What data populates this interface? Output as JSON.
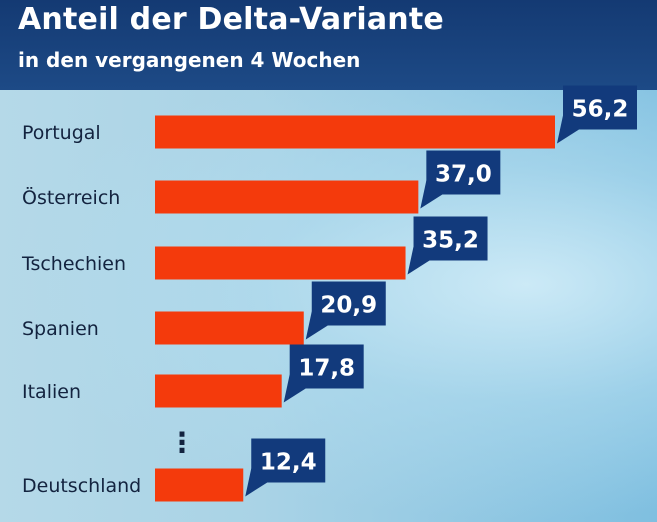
{
  "header": {
    "title": "Anteil der Delta-Variante",
    "subtitle": "in den vergangenen 4 Wochen"
  },
  "colors": {
    "bar": "#f43a0c",
    "value_box": "#123a7c",
    "header_bg": "#143a73"
  },
  "chart_data": {
    "type": "bar",
    "orientation": "horizontal",
    "title": "Anteil der Delta-Variante",
    "subtitle": "in den vergangenen 4 Wochen",
    "categories": [
      "Portugal",
      "Österreich",
      "Tschechien",
      "Spanien",
      "Italien",
      "Deutschland"
    ],
    "values": [
      56.2,
      37.0,
      35.2,
      20.9,
      17.8,
      12.4
    ],
    "value_labels": [
      "56,2",
      "37,0",
      "35,2",
      "20,9",
      "17,8",
      "12,4"
    ],
    "gap_marker": "⋮",
    "xlim": [
      0,
      56.2
    ],
    "grid": false,
    "legend": "none"
  }
}
